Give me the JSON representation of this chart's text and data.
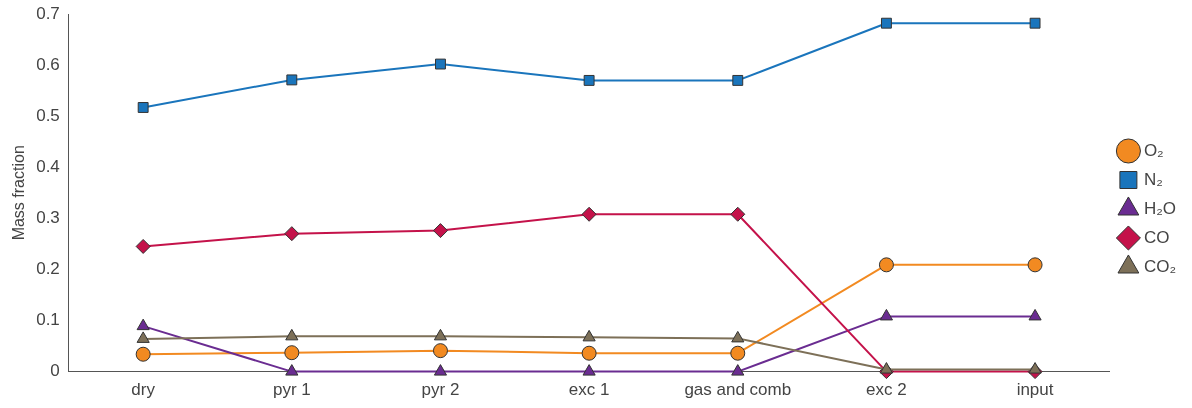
{
  "chart_data": {
    "type": "line",
    "ylabel": "Mass fraction",
    "categories": [
      "dry",
      "pyr 1",
      "pyr 2",
      "exc 1",
      "gas and comb",
      "exc 2",
      "input"
    ],
    "ylim": [
      0,
      0.7
    ],
    "yticks": [
      0,
      0.1,
      0.2,
      0.3,
      0.4,
      0.5,
      0.6,
      0.7
    ],
    "grid": false,
    "legend": "right",
    "series": [
      {
        "name": "O₂",
        "color": "#f28a21",
        "marker": "circle",
        "values": [
          0.034,
          0.037,
          0.041,
          0.036,
          0.036,
          0.209,
          0.209
        ]
      },
      {
        "name": "N₂",
        "color": "#1a75bc",
        "marker": "square",
        "values": [
          0.517,
          0.571,
          0.602,
          0.57,
          0.57,
          0.682,
          0.682
        ]
      },
      {
        "name": "H₂O",
        "color": "#6a2c91",
        "marker": "triangle",
        "values": [
          0.089,
          0,
          0,
          0,
          0,
          0.108,
          0.108
        ]
      },
      {
        "name": "CO",
        "color": "#c4124a",
        "marker": "diamond",
        "values": [
          0.245,
          0.27,
          0.276,
          0.308,
          0.308,
          0,
          0
        ]
      },
      {
        "name": "CO₂",
        "color": "#7d7058",
        "marker": "triangle",
        "values": [
          0.064,
          0.069,
          0.069,
          0.067,
          0.065,
          0.004,
          0.004
        ]
      }
    ]
  }
}
